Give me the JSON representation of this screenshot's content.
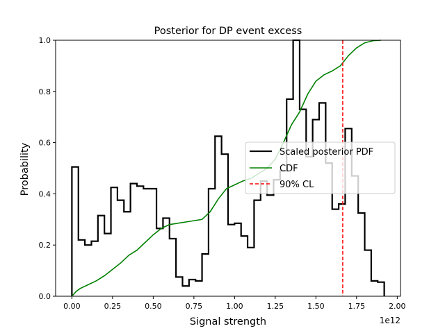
{
  "chart_data": {
    "type": "line",
    "title": "Posterior for DP event excess",
    "xlabel": "Signal strength",
    "ylabel": "Probability",
    "x_offset_label": "1e12",
    "xlim": [
      -0.1,
      2.02
    ],
    "ylim": [
      0,
      1.0
    ],
    "x_ticks": [
      0.0,
      0.25,
      0.5,
      0.75,
      1.0,
      1.25,
      1.5,
      1.75,
      2.0
    ],
    "x_tick_labels": [
      "0.00",
      "0.25",
      "0.50",
      "0.75",
      "1.00",
      "1.25",
      "1.50",
      "1.75",
      "2.00"
    ],
    "y_ticks": [
      0.0,
      0.2,
      0.4,
      0.6,
      0.8,
      1.0
    ],
    "y_tick_labels": [
      "0.0",
      "0.2",
      "0.4",
      "0.6",
      "0.8",
      "1.0"
    ],
    "grid": false,
    "legend_position": "center-right",
    "colors": {
      "pdf": "#000000",
      "cdf": "#008000",
      "cl": "#ff0000"
    },
    "series": [
      {
        "name": "Scaled posterior PDF",
        "style": "step",
        "bin_edges": [
          0.0,
          0.04,
          0.08,
          0.12,
          0.16,
          0.2,
          0.24,
          0.28,
          0.32,
          0.36,
          0.4,
          0.44,
          0.48,
          0.52,
          0.56,
          0.6,
          0.64,
          0.68,
          0.72,
          0.76,
          0.8,
          0.84,
          0.88,
          0.92,
          0.96,
          1.0,
          1.04,
          1.08,
          1.12,
          1.16,
          1.2,
          1.24,
          1.28,
          1.32,
          1.36,
          1.4,
          1.44,
          1.48,
          1.52,
          1.56,
          1.6,
          1.64,
          1.68,
          1.72,
          1.76,
          1.8,
          1.84,
          1.88,
          1.92
        ],
        "values": [
          0.505,
          0.22,
          0.2,
          0.215,
          0.315,
          0.245,
          0.425,
          0.375,
          0.33,
          0.44,
          0.43,
          0.42,
          0.42,
          0.265,
          0.305,
          0.225,
          0.075,
          0.04,
          0.065,
          0.06,
          0.165,
          0.42,
          0.625,
          0.555,
          0.28,
          0.285,
          0.235,
          0.19,
          0.375,
          0.45,
          0.395,
          0.455,
          0.49,
          0.77,
          1.0,
          0.73,
          0.545,
          0.69,
          0.755,
          0.52,
          0.34,
          0.36,
          0.655,
          0.47,
          0.325,
          0.18,
          0.06,
          0.055
        ]
      },
      {
        "name": "CDF",
        "style": "line",
        "x": [
          0.0,
          0.025,
          0.05,
          0.1,
          0.15,
          0.2,
          0.25,
          0.3,
          0.35,
          0.4,
          0.45,
          0.5,
          0.55,
          0.6,
          0.65,
          0.7,
          0.75,
          0.8,
          0.85,
          0.9,
          0.95,
          1.0,
          1.05,
          1.1,
          1.15,
          1.2,
          1.25,
          1.3,
          1.35,
          1.4,
          1.45,
          1.5,
          1.55,
          1.6,
          1.65,
          1.7,
          1.75,
          1.8,
          1.85,
          1.9
        ],
        "y": [
          0.0,
          0.018,
          0.03,
          0.045,
          0.06,
          0.08,
          0.105,
          0.13,
          0.16,
          0.18,
          0.21,
          0.24,
          0.265,
          0.28,
          0.285,
          0.29,
          0.295,
          0.3,
          0.33,
          0.38,
          0.42,
          0.435,
          0.45,
          0.46,
          0.48,
          0.5,
          0.535,
          0.6,
          0.67,
          0.72,
          0.79,
          0.84,
          0.865,
          0.88,
          0.9,
          0.94,
          0.97,
          0.99,
          0.998,
          1.0
        ]
      },
      {
        "name": "90% CL",
        "style": "vline-dashed",
        "x": 1.665
      }
    ]
  }
}
